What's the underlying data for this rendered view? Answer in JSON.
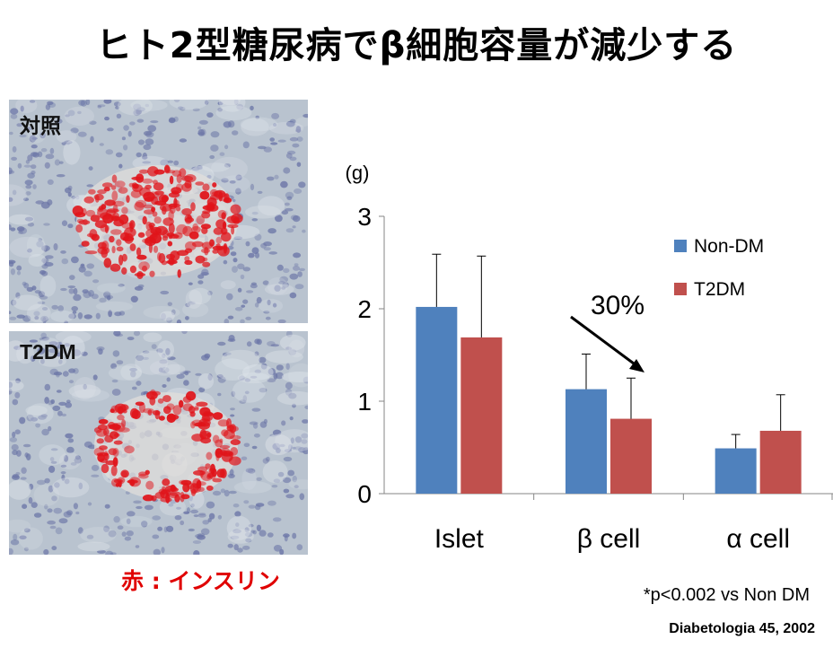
{
  "title": "ヒト2型糖尿病でβ細胞容量が減少する",
  "histology": {
    "control_label": "対照",
    "t2dm_label": "T2DM",
    "stain_caption": "赤 : インスリン"
  },
  "footnote": "*p<0.002 vs Non DM",
  "citation": "Diabetologia 45, 2002",
  "colors": {
    "non_dm": "#4f81bd",
    "t2dm": "#c0504d",
    "tissue_bg": "#b9c3cf",
    "nuclei": "#6a74a6",
    "insulin_stain": "#e0141a"
  },
  "chart_data": {
    "type": "bar",
    "categories": [
      "Islet",
      "β cell",
      "α cell"
    ],
    "series": [
      {
        "name": "Non-DM",
        "values": [
          2.02,
          1.13,
          0.49
        ],
        "errors": [
          0.57,
          0.38,
          0.15
        ]
      },
      {
        "name": "T2DM",
        "values": [
          1.69,
          0.81,
          0.68
        ],
        "errors": [
          0.88,
          0.44,
          0.39
        ]
      }
    ],
    "ylabel": "(g)",
    "ylim": [
      0,
      3
    ],
    "yticks": [
      "0",
      "1",
      "2",
      "3"
    ],
    "grid": false,
    "legend_position": "top-right",
    "annotation": "30%"
  }
}
